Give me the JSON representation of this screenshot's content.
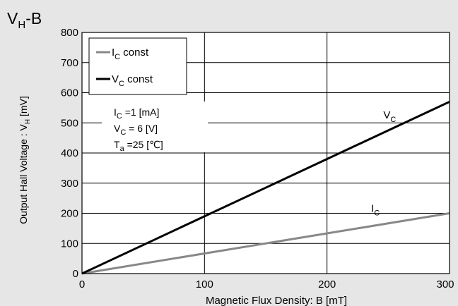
{
  "chart_data": {
    "type": "line",
    "title": "V",
    "title_sub": "H",
    "title_suffix": "-B",
    "xlabel": "Magnetic Flux Density: B [mT]",
    "ylabel_main": "Output Hall Voltage : V",
    "ylabel_sub": "H",
    "ylabel_unit": " [mV]",
    "xlim": [
      0,
      300
    ],
    "ylim": [
      0,
      800
    ],
    "x_ticks": [
      0,
      100,
      200,
      300
    ],
    "y_ticks": [
      0,
      100,
      200,
      300,
      400,
      500,
      600,
      700,
      800
    ],
    "x_gridlines": [
      100,
      200
    ],
    "y_gridlines": [
      100,
      200,
      300,
      400,
      500,
      600,
      700
    ],
    "grid": true,
    "legend_position": "top-left",
    "series": [
      {
        "name": "Ic const",
        "legend_main": "I",
        "legend_sub": "C",
        "legend_rest": " const",
        "end_label_main": "I",
        "end_label_sub": "C",
        "color": "#888888",
        "x": [
          0,
          300
        ],
        "y": [
          0,
          200
        ]
      },
      {
        "name": "Vc const",
        "legend_main": "V",
        "legend_sub": "C",
        "legend_rest": " const",
        "end_label_main": "V",
        "end_label_sub": "C",
        "color": "#000000",
        "x": [
          0,
          300
        ],
        "y": [
          0,
          570
        ]
      }
    ],
    "annotations": [
      {
        "main": "I",
        "sub": "C",
        "rest": " =1 [mA]"
      },
      {
        "main": "V",
        "sub": "C",
        "rest": " = 6  [V]"
      },
      {
        "main": "T",
        "sub": "a",
        "rest": " =25 [℃]"
      }
    ]
  }
}
